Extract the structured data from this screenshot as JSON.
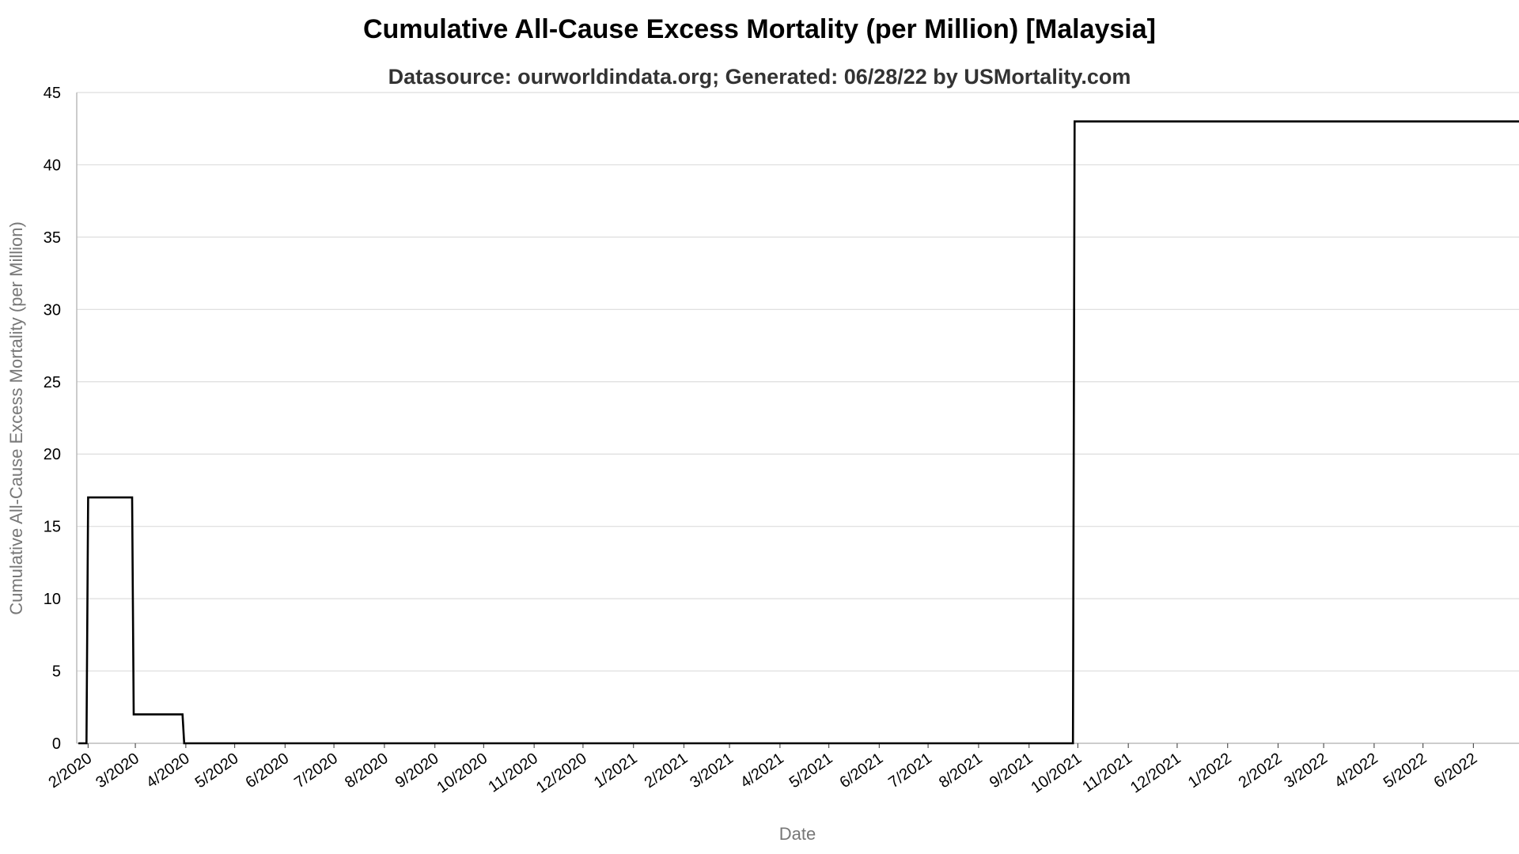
{
  "chart_data": {
    "type": "line",
    "title": "Cumulative All-Cause Excess Mortality (per Million) [Malaysia]",
    "subtitle": "Datasource: ourworldindata.org; Generated: 06/28/22 by USMortality.com",
    "xlabel": "Date",
    "ylabel": "Cumulative All-Cause Excess Mortality (per Million)",
    "ylim": [
      0,
      45
    ],
    "yticks": [
      0,
      5,
      10,
      15,
      20,
      25,
      30,
      35,
      40,
      45
    ],
    "xticks": [
      "2/2020",
      "3/2020",
      "4/2020",
      "5/2020",
      "6/2020",
      "7/2020",
      "8/2020",
      "9/2020",
      "10/2020",
      "11/2020",
      "12/2020",
      "1/2021",
      "2/2021",
      "3/2021",
      "4/2021",
      "5/2021",
      "6/2021",
      "7/2021",
      "8/2021",
      "9/2021",
      "10/2021",
      "11/2021",
      "12/2021",
      "1/2022",
      "2/2022",
      "3/2022",
      "4/2022",
      "5/2022",
      "6/2022"
    ],
    "xlim": [
      "2020-01-25",
      "2022-06-29"
    ],
    "grid": true,
    "legend": "none",
    "series": [
      {
        "color": "#000000",
        "step": true,
        "points": [
          {
            "x": "2020-01-26",
            "y": 0
          },
          {
            "x": "2020-01-31",
            "y": 0
          },
          {
            "x": "2020-02-01",
            "y": 17
          },
          {
            "x": "2020-02-28",
            "y": 17
          },
          {
            "x": "2020-02-29",
            "y": 2
          },
          {
            "x": "2020-03-30",
            "y": 2
          },
          {
            "x": "2020-03-31",
            "y": 0
          },
          {
            "x": "2021-09-28",
            "y": 0
          },
          {
            "x": "2021-09-29",
            "y": 43
          },
          {
            "x": "2022-06-29",
            "y": 43
          }
        ]
      }
    ]
  }
}
